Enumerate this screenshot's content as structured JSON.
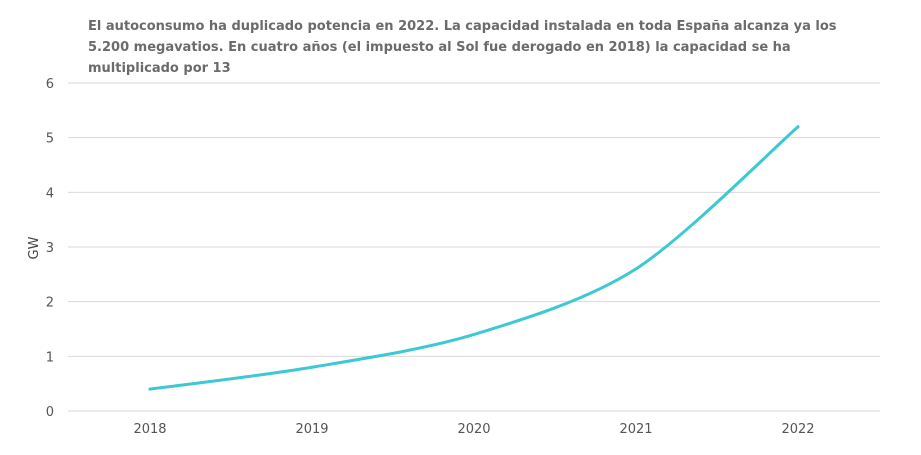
{
  "chart_data": {
    "type": "line",
    "title": "El autoconsumo ha duplicado potencia en 2022. La capacidad instalada en toda España alcanza ya los 5.200 megavatios. En cuatro años (el impuesto al Sol fue derogado en 2018) la capacidad se ha multiplicado por 13",
    "xlabel": "",
    "ylabel": "GW",
    "categories": [
      "2018",
      "2019",
      "2020",
      "2021",
      "2022"
    ],
    "series": [
      {
        "values": [
          0.4,
          0.8,
          1.4,
          2.6,
          5.2
        ],
        "color": "#3cc8d4"
      }
    ],
    "ylim": [
      0,
      6
    ],
    "yticks": [
      "0",
      "1",
      "2",
      "3",
      "4",
      "5",
      "6"
    ],
    "grid": true,
    "legend": "none"
  }
}
